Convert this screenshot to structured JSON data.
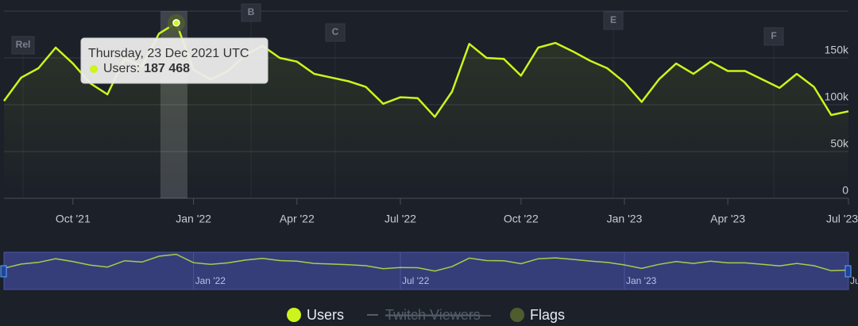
{
  "chart_data": {
    "type": "line",
    "categories": [
      null,
      null,
      null,
      null,
      "Oct '21",
      null,
      null,
      null,
      null,
      null,
      null,
      "Jan '22",
      null,
      null,
      null,
      null,
      null,
      "Apr '22",
      null,
      null,
      null,
      null,
      null,
      "Jul '22",
      null,
      null,
      null,
      null,
      null,
      null,
      "Oct '22",
      null,
      null,
      null,
      null,
      null,
      "Jan '23",
      null,
      null,
      null,
      null,
      null,
      "Apr '23",
      null,
      null,
      null,
      null,
      null,
      null,
      "Jul '23"
    ],
    "series": [
      {
        "name": "Users",
        "color": "#cdf41c",
        "values": [
          104000,
          129000,
          139000,
          161000,
          144000,
          123000,
          111000,
          149000,
          141000,
          176000,
          187468,
          137000,
          127000,
          136000,
          153000,
          163000,
          150000,
          146000,
          133000,
          129000,
          125000,
          119000,
          101000,
          108000,
          107000,
          87000,
          114000,
          165000,
          150000,
          149000,
          131000,
          161000,
          166000,
          157000,
          147000,
          139000,
          124000,
          103000,
          127000,
          144000,
          133000,
          146000,
          136000,
          136000,
          127000,
          118000,
          133000,
          119000,
          89000,
          93000
        ],
        "value_labels": [
          null,
          null,
          null,
          null,
          null,
          null,
          null,
          null,
          null,
          null,
          "187 468",
          null,
          null,
          null,
          null,
          null,
          null,
          null,
          null,
          null,
          null,
          null,
          null,
          null,
          null,
          null,
          null,
          null,
          null,
          null,
          null,
          null,
          null,
          null,
          null,
          null,
          null,
          null,
          null,
          null,
          null,
          null,
          null,
          null,
          null,
          null,
          null,
          null,
          null,
          null
        ]
      }
    ],
    "hidden_series": [
      {
        "name": "Twitch Viewers"
      }
    ],
    "flags": {
      "name": "Flags",
      "color": "#4f5c2e",
      "labels": [
        "Rel",
        "B",
        "C",
        "E",
        "F"
      ]
    },
    "tooltip": {
      "title": "Thursday, 23 Dec 2021 UTC",
      "series_label": "Users:"
    },
    "ylim": [
      0,
      200000
    ],
    "yticks": [
      0,
      {
        "value": 50000,
        "label": "50k"
      },
      {
        "value": 100000,
        "label": "100k"
      },
      {
        "value": 150000,
        "label": "150k"
      }
    ],
    "grid": true
  }
}
